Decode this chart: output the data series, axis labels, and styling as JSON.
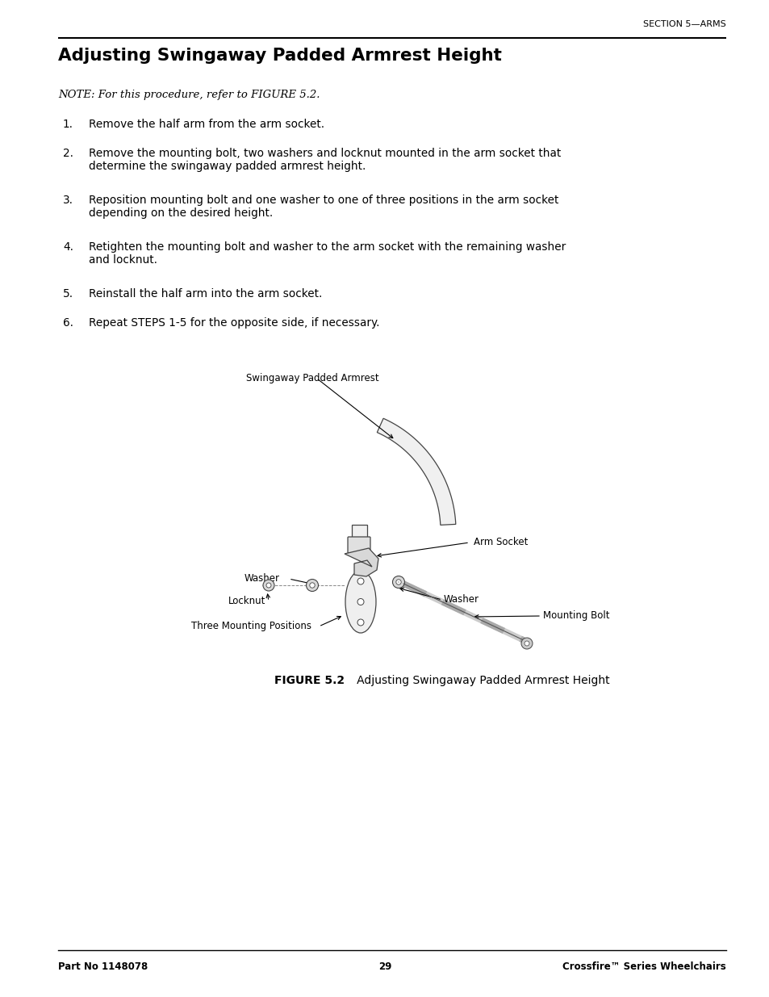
{
  "page_width": 9.54,
  "page_height": 12.35,
  "bg_color": "#ffffff",
  "header_section": "SECTION 5—ARMS",
  "title": "Adjusting Swingaway Padded Armrest Height",
  "note": "NOTE: For this procedure, refer to FIGURE 5.2.",
  "steps": [
    [
      "1.",
      "Remove the half arm from the arm socket."
    ],
    [
      "2.",
      "Remove the mounting bolt, two washers and locknut mounted in the arm socket that\ndetermine the swingaway padded armrest height."
    ],
    [
      "3.",
      "Reposition mounting bolt and one washer to one of three positions in the arm socket\ndepending on the desired height."
    ],
    [
      "4.",
      "Retighten the mounting bolt and washer to the arm socket with the remaining washer\nand locknut."
    ],
    [
      "5.",
      "Reinstall the half arm into the arm socket."
    ],
    [
      "6.",
      "Repeat STEPS 1-5 for the opposite side, if necessary."
    ]
  ],
  "figure_caption_bold": "FIGURE 5.2",
  "figure_caption_rest": "   Adjusting Swingaway Padded Armrest Height",
  "footer_left": "Part No 1148078",
  "footer_center": "29",
  "footer_right": "Crossfire™ Series Wheelchairs",
  "label_swingaway": "Swingaway Padded Armrest",
  "label_arm_socket": "Arm Socket",
  "label_washer_top": "Washer",
  "label_locknut": "Locknut",
  "label_washer_bottom": "Washer",
  "label_three_pos": "Three Mounting Positions",
  "label_bolt": "Mounting Bolt"
}
